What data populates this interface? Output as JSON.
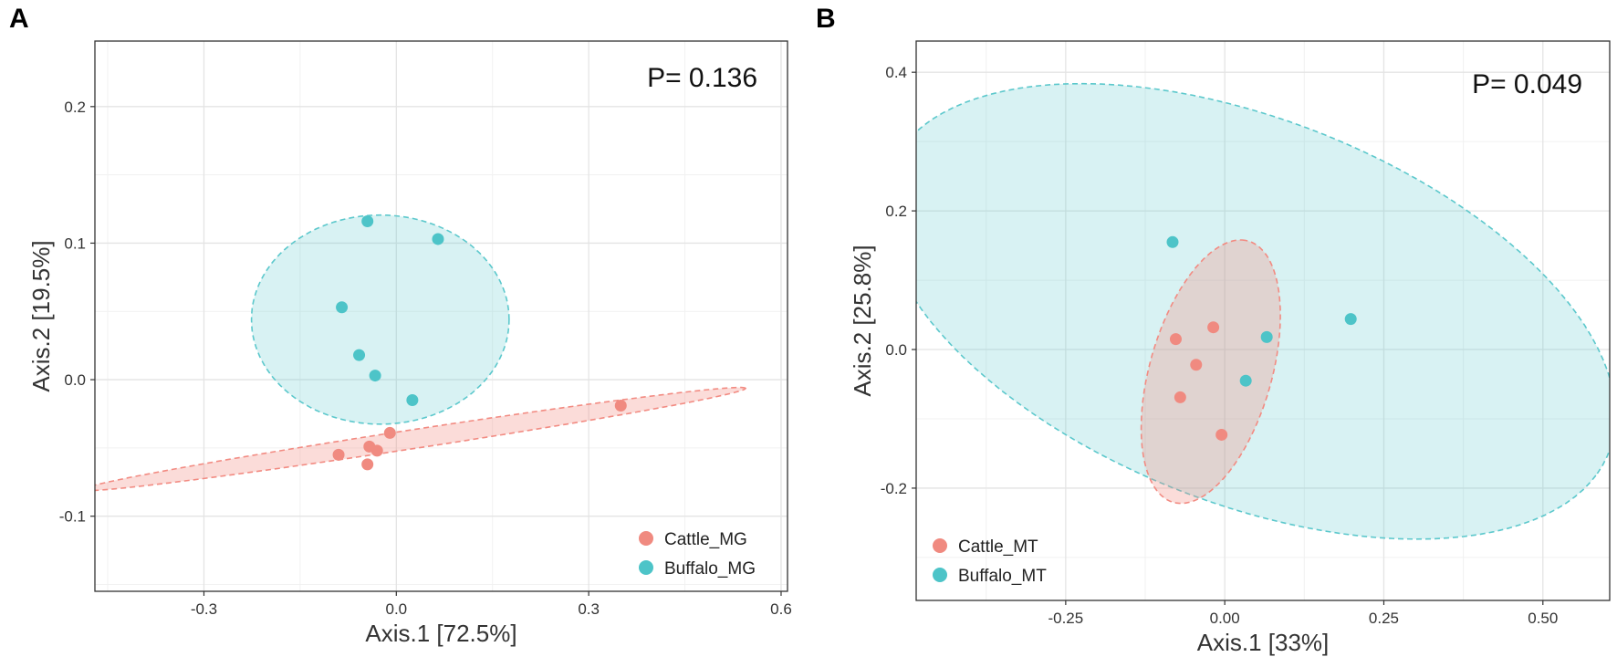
{
  "chart_data": [
    {
      "type": "scatter",
      "panel_label": "A",
      "annotation": "P= 0.136",
      "xlabel": "Axis.1 [72.5%]",
      "ylabel": "Axis.2 [19.5%]",
      "xlim": [
        -0.47,
        0.61
      ],
      "ylim": [
        -0.155,
        0.248
      ],
      "xticks": [
        -0.3,
        0.0,
        0.3,
        0.6
      ],
      "xtick_labels": [
        "-0.3",
        "0.0",
        "0.3",
        "0.6"
      ],
      "yticks": [
        -0.1,
        0.0,
        0.1,
        0.2
      ],
      "ytick_labels": [
        "-0.1",
        "0.0",
        "0.1",
        "0.2"
      ],
      "grid": true,
      "legend_position": "bottom-right",
      "series": [
        {
          "name": "Cattle_MG",
          "color": "#F28B82",
          "points": [
            [
              0.35,
              -0.019
            ],
            [
              -0.01,
              -0.039
            ],
            [
              -0.03,
              -0.052
            ],
            [
              -0.042,
              -0.049
            ],
            [
              -0.045,
              -0.062
            ],
            [
              -0.09,
              -0.055
            ]
          ],
          "ellipse": {
            "center": [
              0.027,
              -0.0435
            ],
            "semi_axis_1": 0.488,
            "semi_axis_2": 0.017,
            "angle_deg": 10.9
          }
        },
        {
          "name": "Buffalo_MG",
          "color": "#5CC8CC",
          "points": [
            [
              -0.045,
              0.116
            ],
            [
              0.065,
              0.103
            ],
            [
              -0.085,
              0.053
            ],
            [
              -0.058,
              0.018
            ],
            [
              -0.033,
              0.003
            ],
            [
              0.025,
              -0.015
            ]
          ],
          "ellipse": {
            "center": [
              -0.025,
              0.044
            ],
            "semi_axis_1": 0.186,
            "semi_axis_2": 0.19,
            "angle_deg": 0
          }
        }
      ]
    },
    {
      "type": "scatter",
      "panel_label": "B",
      "annotation": "P= 0.049",
      "xlabel": "Axis.1 [33%]",
      "ylabel": "Axis.2 [25.8%]",
      "xlim": [
        -0.485,
        0.605
      ],
      "ylim": [
        -0.362,
        0.445
      ],
      "xticks": [
        -0.25,
        0.0,
        0.25,
        0.5
      ],
      "xtick_labels": [
        "-0.25",
        "0.00",
        "0.25",
        "0.50"
      ],
      "yticks": [
        -0.2,
        0.0,
        0.2,
        0.4
      ],
      "ytick_labels": [
        "-0.2",
        "0.0",
        "0.2",
        "0.4"
      ],
      "grid": true,
      "legend_position": "bottom-left",
      "series": [
        {
          "name": "Cattle_MT",
          "color": "#F28B82",
          "points": [
            [
              -0.077,
              0.015
            ],
            [
              -0.018,
              0.032
            ],
            [
              -0.045,
              -0.022
            ],
            [
              -0.07,
              -0.069
            ],
            [
              -0.005,
              -0.123
            ]
          ],
          "ellipse": {
            "center": [
              -0.022,
              -0.032
            ],
            "semi_axis_1": 0.24,
            "semi_axis_2": 0.089,
            "angle_deg": 78
          }
        },
        {
          "name": "Buffalo_MT",
          "color": "#5CC8CC",
          "points": [
            [
              -0.082,
              0.155
            ],
            [
              0.066,
              0.018
            ],
            [
              0.198,
              0.044
            ],
            [
              0.033,
              -0.045
            ]
          ],
          "ellipse": {
            "center": [
              0.038,
              0.055
            ],
            "semi_axis_1": 0.58,
            "semi_axis_2": 0.33,
            "angle_deg": -30
          }
        }
      ]
    }
  ]
}
